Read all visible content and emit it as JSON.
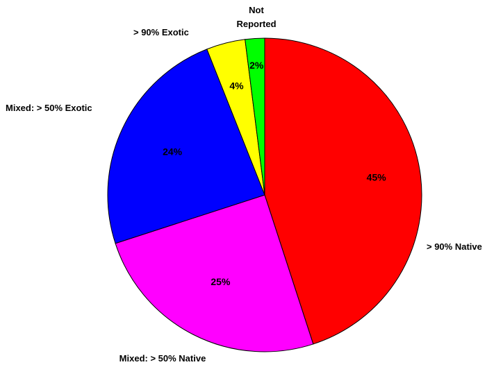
{
  "chart_data": {
    "type": "pie",
    "start_angle_deg": 0,
    "direction": "clockwise",
    "slices": [
      {
        "label": "> 90% Native",
        "value": 45,
        "value_label": "45%",
        "color": "#ff0000"
      },
      {
        "label": "Mixed: > 50% Native",
        "value": 25,
        "value_label": "25%",
        "color": "#ff00ff"
      },
      {
        "label": "Mixed: > 50% Exotic",
        "value": 24,
        "value_label": "24%",
        "color": "#0000ff"
      },
      {
        "label": "> 90% Exotic",
        "value": 4,
        "value_label": "4%",
        "color": "#ffff00"
      },
      {
        "label": "Not Reported",
        "value": 2,
        "value_label": "2%",
        "color": "#00ff00"
      }
    ]
  }
}
